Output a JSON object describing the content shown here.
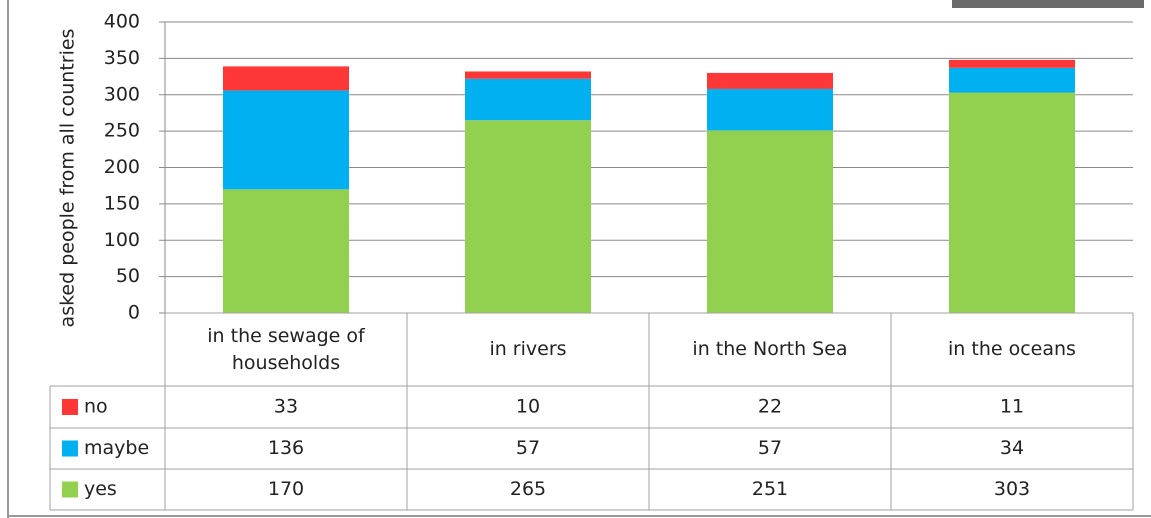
{
  "chart_data": {
    "type": "bar",
    "stacked": true,
    "y_label": "asked people from all countries",
    "categories": [
      "in the sewage of households",
      "in rivers",
      "in the North Sea",
      "in the oceans"
    ],
    "series": [
      {
        "name": "no",
        "color": "#ff3737",
        "values": [
          33,
          10,
          22,
          11
        ]
      },
      {
        "name": "maybe",
        "color": "#00b0f0",
        "values": [
          136,
          57,
          57,
          34
        ]
      },
      {
        "name": "yes",
        "color": "#92d050",
        "values": [
          170,
          265,
          251,
          303
        ]
      }
    ],
    "ylim": [
      0,
      400
    ],
    "yticks": [
      0,
      50,
      100,
      150,
      200,
      250,
      300,
      350,
      400
    ],
    "grid": true,
    "data_table": true
  }
}
